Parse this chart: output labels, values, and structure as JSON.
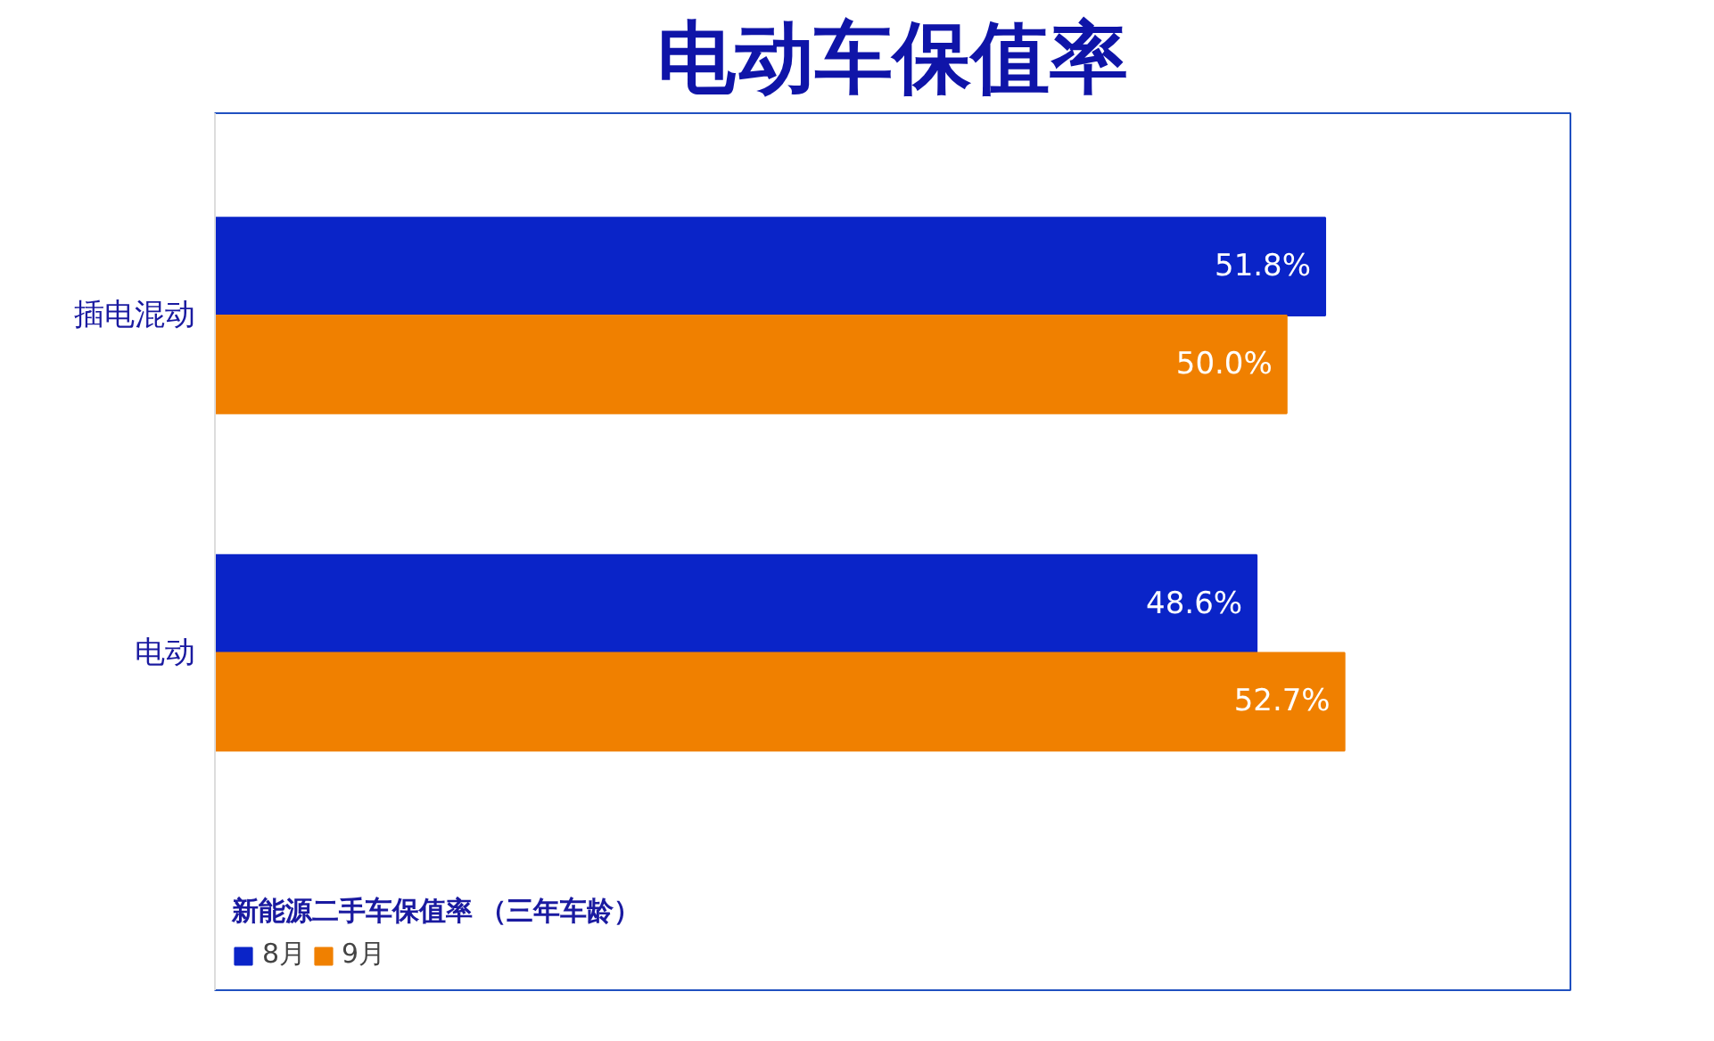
{
  "chart_data": {
    "type": "bar",
    "orientation": "horizontal",
    "title": "电动车保值率",
    "legend_title": "新能源二手车保值率 （三年车龄）",
    "categories": [
      "插电混动",
      "电动"
    ],
    "series": [
      {
        "name": "8月",
        "color": "#0a24c8",
        "values": [
          51.8,
          48.6
        ],
        "value_labels": [
          "51.8%",
          "48.6%"
        ]
      },
      {
        "name": "9月",
        "color": "#f08000",
        "values": [
          50.0,
          52.7
        ],
        "value_labels": [
          "50.0%",
          "52.7%"
        ]
      }
    ],
    "legend": "bottom left",
    "tick_labels": "y"
  }
}
